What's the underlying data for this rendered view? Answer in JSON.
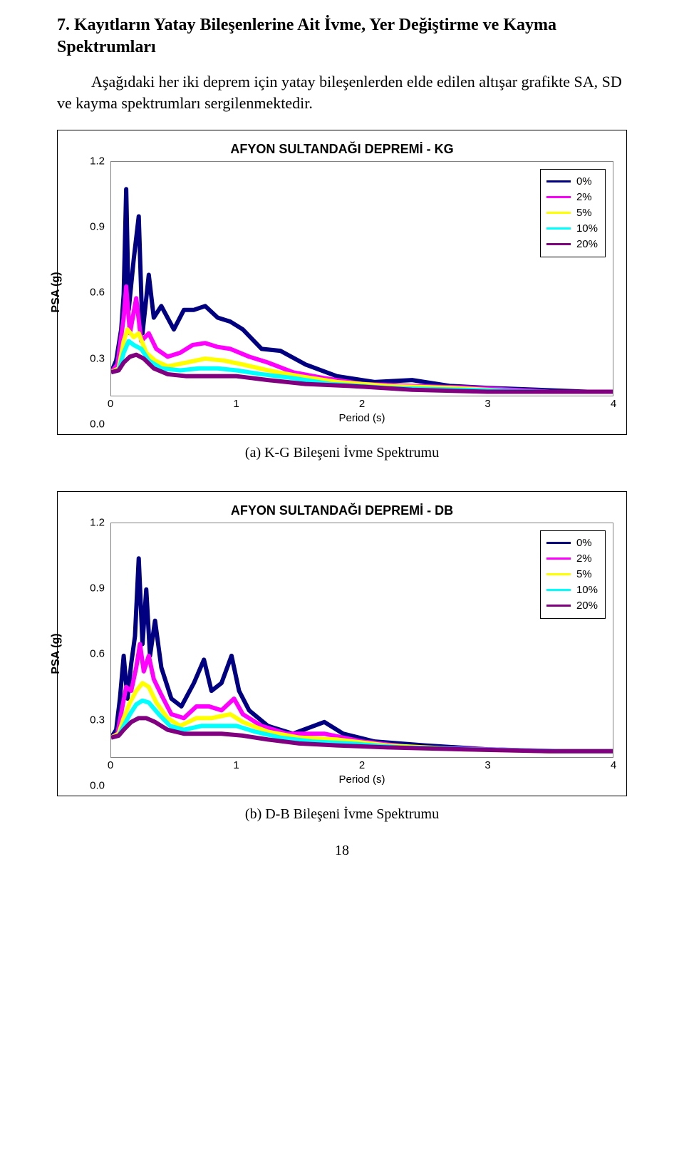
{
  "heading": "7. Kayıtların Yatay Bileşenlerine Ait İvme, Yer Değiştirme ve Kayma Spektrumları",
  "paragraph": "Aşağıdaki her iki deprem için yatay bileşenlerden elde edilen altışar grafikte SA, SD ve kayma spektrumları sergilenmektedir.",
  "page_number": "18",
  "charts": [
    {
      "title": "AFYON SULTANDAĞI DEPREMİ - KG",
      "y_label": "PSA (g)",
      "x_label": "Period (s)",
      "ylim": [
        0.0,
        1.2
      ],
      "xlim": [
        0,
        4
      ],
      "y_ticks": [
        "0.0",
        "0.3",
        "0.6",
        "0.9",
        "1.2"
      ],
      "x_ticks": [
        "0",
        "1",
        "2",
        "3",
        "4"
      ],
      "caption": "(a) K-G Bileşeni İvme Spektrumu",
      "legend": [
        {
          "label": "0%",
          "color": "#000080"
        },
        {
          "label": "2%",
          "color": "#ff00ff"
        },
        {
          "label": "5%",
          "color": "#ffff00"
        },
        {
          "label": "10%",
          "color": "#00ffff"
        },
        {
          "label": "20%",
          "color": "#800080"
        }
      ],
      "series": [
        {
          "color": "#000080",
          "pts": [
            [
              0.0,
              0.12
            ],
            [
              0.04,
              0.18
            ],
            [
              0.08,
              0.34
            ],
            [
              0.1,
              0.52
            ],
            [
              0.12,
              1.06
            ],
            [
              0.14,
              0.44
            ],
            [
              0.18,
              0.7
            ],
            [
              0.22,
              0.92
            ],
            [
              0.25,
              0.32
            ],
            [
              0.3,
              0.62
            ],
            [
              0.34,
              0.4
            ],
            [
              0.4,
              0.46
            ],
            [
              0.5,
              0.34
            ],
            [
              0.58,
              0.44
            ],
            [
              0.66,
              0.44
            ],
            [
              0.75,
              0.46
            ],
            [
              0.85,
              0.4
            ],
            [
              0.95,
              0.38
            ],
            [
              1.05,
              0.34
            ],
            [
              1.2,
              0.24
            ],
            [
              1.35,
              0.23
            ],
            [
              1.55,
              0.16
            ],
            [
              1.8,
              0.1
            ],
            [
              2.1,
              0.07
            ],
            [
              2.4,
              0.08
            ],
            [
              2.7,
              0.05
            ],
            [
              3.0,
              0.04
            ],
            [
              3.4,
              0.03
            ],
            [
              3.8,
              0.02
            ],
            [
              4.0,
              0.02
            ]
          ]
        },
        {
          "color": "#ff00ff",
          "pts": [
            [
              0.0,
              0.12
            ],
            [
              0.05,
              0.16
            ],
            [
              0.1,
              0.4
            ],
            [
              0.12,
              0.56
            ],
            [
              0.15,
              0.32
            ],
            [
              0.2,
              0.5
            ],
            [
              0.24,
              0.28
            ],
            [
              0.3,
              0.32
            ],
            [
              0.36,
              0.24
            ],
            [
              0.45,
              0.2
            ],
            [
              0.55,
              0.22
            ],
            [
              0.65,
              0.26
            ],
            [
              0.75,
              0.27
            ],
            [
              0.85,
              0.25
            ],
            [
              0.95,
              0.24
            ],
            [
              1.1,
              0.2
            ],
            [
              1.25,
              0.17
            ],
            [
              1.45,
              0.12
            ],
            [
              1.7,
              0.09
            ],
            [
              2.0,
              0.06
            ],
            [
              2.4,
              0.05
            ],
            [
              2.9,
              0.04
            ],
            [
              3.5,
              0.02
            ],
            [
              4.0,
              0.02
            ]
          ]
        },
        {
          "color": "#ffff00",
          "pts": [
            [
              0.0,
              0.12
            ],
            [
              0.06,
              0.14
            ],
            [
              0.1,
              0.28
            ],
            [
              0.13,
              0.34
            ],
            [
              0.18,
              0.3
            ],
            [
              0.22,
              0.32
            ],
            [
              0.28,
              0.22
            ],
            [
              0.35,
              0.18
            ],
            [
              0.45,
              0.15
            ],
            [
              0.6,
              0.17
            ],
            [
              0.75,
              0.19
            ],
            [
              0.9,
              0.18
            ],
            [
              1.05,
              0.16
            ],
            [
              1.25,
              0.13
            ],
            [
              1.5,
              0.1
            ],
            [
              1.8,
              0.07
            ],
            [
              2.2,
              0.05
            ],
            [
              2.7,
              0.04
            ],
            [
              3.3,
              0.02
            ],
            [
              4.0,
              0.02
            ]
          ]
        },
        {
          "color": "#00ffff",
          "pts": [
            [
              0.0,
              0.12
            ],
            [
              0.06,
              0.13
            ],
            [
              0.1,
              0.22
            ],
            [
              0.14,
              0.28
            ],
            [
              0.18,
              0.26
            ],
            [
              0.24,
              0.24
            ],
            [
              0.3,
              0.18
            ],
            [
              0.4,
              0.14
            ],
            [
              0.55,
              0.13
            ],
            [
              0.7,
              0.14
            ],
            [
              0.85,
              0.14
            ],
            [
              1.0,
              0.13
            ],
            [
              1.2,
              0.11
            ],
            [
              1.45,
              0.09
            ],
            [
              1.75,
              0.06
            ],
            [
              2.2,
              0.04
            ],
            [
              2.8,
              0.03
            ],
            [
              3.5,
              0.02
            ],
            [
              4.0,
              0.02
            ]
          ]
        },
        {
          "color": "#800080",
          "pts": [
            [
              0.0,
              0.12
            ],
            [
              0.06,
              0.13
            ],
            [
              0.1,
              0.17
            ],
            [
              0.15,
              0.2
            ],
            [
              0.2,
              0.21
            ],
            [
              0.26,
              0.19
            ],
            [
              0.34,
              0.14
            ],
            [
              0.45,
              0.11
            ],
            [
              0.6,
              0.1
            ],
            [
              0.8,
              0.1
            ],
            [
              1.0,
              0.1
            ],
            [
              1.25,
              0.08
            ],
            [
              1.55,
              0.06
            ],
            [
              1.9,
              0.05
            ],
            [
              2.4,
              0.03
            ],
            [
              3.0,
              0.02
            ],
            [
              3.6,
              0.02
            ],
            [
              4.0,
              0.02
            ]
          ]
        }
      ]
    },
    {
      "title": "AFYON SULTANDAĞI DEPREMİ - DB",
      "y_label": "PSA (g)",
      "x_label": "Period (s)",
      "ylim": [
        0.0,
        1.2
      ],
      "xlim": [
        0,
        4
      ],
      "y_ticks": [
        "0.0",
        "0.3",
        "0.6",
        "0.9",
        "1.2"
      ],
      "x_ticks": [
        "0",
        "1",
        "2",
        "3",
        "4"
      ],
      "caption": "(b) D-B Bileşeni İvme Spektrumu",
      "legend": [
        {
          "label": "0%",
          "color": "#000080"
        },
        {
          "label": "2%",
          "color": "#ff00ff"
        },
        {
          "label": "5%",
          "color": "#ffff00"
        },
        {
          "label": "10%",
          "color": "#00ffff"
        },
        {
          "label": "20%",
          "color": "#800080"
        }
      ],
      "series": [
        {
          "color": "#000080",
          "pts": [
            [
              0.0,
              0.1
            ],
            [
              0.04,
              0.14
            ],
            [
              0.07,
              0.3
            ],
            [
              0.1,
              0.52
            ],
            [
              0.13,
              0.3
            ],
            [
              0.16,
              0.48
            ],
            [
              0.19,
              0.62
            ],
            [
              0.22,
              1.02
            ],
            [
              0.25,
              0.58
            ],
            [
              0.28,
              0.86
            ],
            [
              0.31,
              0.52
            ],
            [
              0.35,
              0.7
            ],
            [
              0.4,
              0.46
            ],
            [
              0.48,
              0.3
            ],
            [
              0.56,
              0.26
            ],
            [
              0.66,
              0.38
            ],
            [
              0.74,
              0.5
            ],
            [
              0.8,
              0.34
            ],
            [
              0.88,
              0.38
            ],
            [
              0.96,
              0.52
            ],
            [
              1.02,
              0.34
            ],
            [
              1.1,
              0.24
            ],
            [
              1.25,
              0.16
            ],
            [
              1.45,
              0.12
            ],
            [
              1.7,
              0.18
            ],
            [
              1.85,
              0.12
            ],
            [
              2.1,
              0.08
            ],
            [
              2.5,
              0.06
            ],
            [
              3.0,
              0.04
            ],
            [
              3.5,
              0.03
            ],
            [
              4.0,
              0.03
            ]
          ]
        },
        {
          "color": "#ff00ff",
          "pts": [
            [
              0.0,
              0.1
            ],
            [
              0.05,
              0.12
            ],
            [
              0.09,
              0.26
            ],
            [
              0.12,
              0.36
            ],
            [
              0.16,
              0.34
            ],
            [
              0.2,
              0.46
            ],
            [
              0.23,
              0.58
            ],
            [
              0.26,
              0.44
            ],
            [
              0.3,
              0.52
            ],
            [
              0.34,
              0.4
            ],
            [
              0.4,
              0.32
            ],
            [
              0.48,
              0.22
            ],
            [
              0.58,
              0.2
            ],
            [
              0.68,
              0.26
            ],
            [
              0.78,
              0.26
            ],
            [
              0.88,
              0.24
            ],
            [
              0.98,
              0.3
            ],
            [
              1.05,
              0.22
            ],
            [
              1.2,
              0.16
            ],
            [
              1.4,
              0.12
            ],
            [
              1.7,
              0.12
            ],
            [
              2.0,
              0.08
            ],
            [
              2.4,
              0.05
            ],
            [
              3.0,
              0.04
            ],
            [
              3.6,
              0.03
            ],
            [
              4.0,
              0.03
            ]
          ]
        },
        {
          "color": "#ffff00",
          "pts": [
            [
              0.0,
              0.1
            ],
            [
              0.06,
              0.12
            ],
            [
              0.1,
              0.2
            ],
            [
              0.15,
              0.28
            ],
            [
              0.2,
              0.34
            ],
            [
              0.25,
              0.38
            ],
            [
              0.3,
              0.36
            ],
            [
              0.36,
              0.28
            ],
            [
              0.45,
              0.2
            ],
            [
              0.55,
              0.16
            ],
            [
              0.68,
              0.2
            ],
            [
              0.8,
              0.2
            ],
            [
              0.95,
              0.22
            ],
            [
              1.05,
              0.18
            ],
            [
              1.25,
              0.13
            ],
            [
              1.5,
              0.1
            ],
            [
              1.8,
              0.09
            ],
            [
              2.2,
              0.06
            ],
            [
              2.8,
              0.04
            ],
            [
              3.5,
              0.03
            ],
            [
              4.0,
              0.03
            ]
          ]
        },
        {
          "color": "#00ffff",
          "pts": [
            [
              0.0,
              0.1
            ],
            [
              0.06,
              0.11
            ],
            [
              0.1,
              0.16
            ],
            [
              0.15,
              0.22
            ],
            [
              0.2,
              0.27
            ],
            [
              0.25,
              0.29
            ],
            [
              0.3,
              0.28
            ],
            [
              0.38,
              0.22
            ],
            [
              0.47,
              0.16
            ],
            [
              0.58,
              0.14
            ],
            [
              0.72,
              0.16
            ],
            [
              0.85,
              0.16
            ],
            [
              1.0,
              0.16
            ],
            [
              1.15,
              0.13
            ],
            [
              1.35,
              0.1
            ],
            [
              1.6,
              0.08
            ],
            [
              1.9,
              0.07
            ],
            [
              2.3,
              0.05
            ],
            [
              2.9,
              0.04
            ],
            [
              3.6,
              0.03
            ],
            [
              4.0,
              0.03
            ]
          ]
        },
        {
          "color": "#800080",
          "pts": [
            [
              0.0,
              0.1
            ],
            [
              0.06,
              0.11
            ],
            [
              0.1,
              0.14
            ],
            [
              0.16,
              0.18
            ],
            [
              0.22,
              0.2
            ],
            [
              0.28,
              0.2
            ],
            [
              0.35,
              0.18
            ],
            [
              0.45,
              0.14
            ],
            [
              0.58,
              0.12
            ],
            [
              0.72,
              0.12
            ],
            [
              0.88,
              0.12
            ],
            [
              1.05,
              0.11
            ],
            [
              1.25,
              0.09
            ],
            [
              1.5,
              0.07
            ],
            [
              1.8,
              0.06
            ],
            [
              2.2,
              0.05
            ],
            [
              2.8,
              0.04
            ],
            [
              3.5,
              0.03
            ],
            [
              4.0,
              0.03
            ]
          ]
        }
      ]
    }
  ]
}
